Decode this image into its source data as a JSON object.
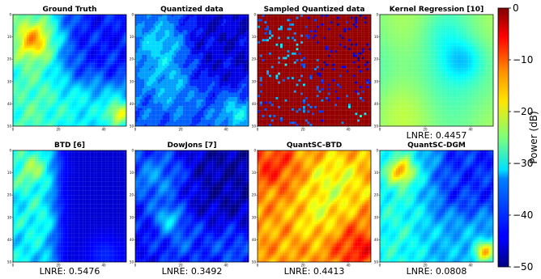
{
  "chart_data": {
    "type": "heatmap",
    "colormap": "jet",
    "grid": false,
    "colorbar": {
      "label": "Power (dB)",
      "range": [
        -50,
        0
      ],
      "ticks": [
        "0",
        "−10",
        "−20",
        "−30",
        "−40",
        "−50"
      ],
      "position": "right"
    },
    "axis": {
      "range": [
        0,
        50
      ],
      "x_tick_labels": [
        "0",
        "20",
        "40"
      ],
      "y_tick_labels": [
        "0",
        "10",
        "20",
        "30",
        "40",
        "50"
      ]
    },
    "panels": [
      {
        "title": "Ground Truth",
        "caption": "",
        "pattern": "truth"
      },
      {
        "title": "Quantized data",
        "caption": "",
        "pattern": "quant"
      },
      {
        "title": "Sampled Quantized data",
        "caption": "",
        "pattern": "sampled"
      },
      {
        "title": "Kernel Regression [10]",
        "caption": "LNRE: 0.4457",
        "pattern": "kernel"
      },
      {
        "title": "BTD [6]",
        "caption": "LNRE: 0.5476",
        "pattern": "btd"
      },
      {
        "title": "DowJons [7]",
        "caption": "LNRE: 0.3492",
        "pattern": "dowjons"
      },
      {
        "title": "QuantSC-BTD",
        "caption": "LNRE: 0.4413",
        "pattern": "qscbtd"
      },
      {
        "title": "QuantSC-DGM",
        "caption": "LNRE: 0.0808",
        "pattern": "qscdgm"
      }
    ]
  }
}
